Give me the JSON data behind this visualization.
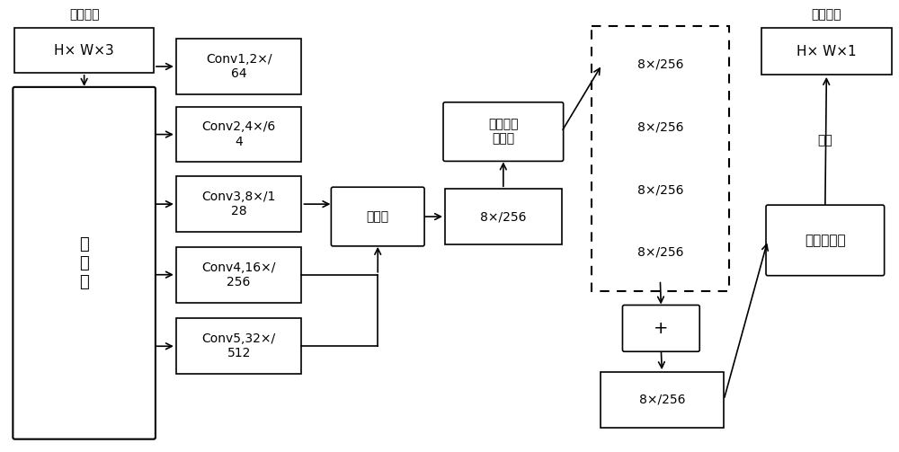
{
  "bg_color": "#ffffff",
  "input_label": "输入图像",
  "input_text": "H× W×3",
  "encoder_text": "编\n码\n器",
  "conv_texts": [
    "Conv1,2×/\n64",
    "Conv2,4×/6\n4",
    "Conv3,8×/1\n28",
    "Conv4,16×/\n256",
    "Conv5,32×/\n512"
  ],
  "upsample_text": "上采样",
  "feat_text": "8×/256",
  "depth_text": "深度可分\n离卷积",
  "atrous_text": "8×/256",
  "plus_text": "+",
  "sum_text": "8×/256",
  "classifier_text": "卷积分类器",
  "output_label": "输出结果",
  "output_text": "H× W×1",
  "test_text": "测试"
}
